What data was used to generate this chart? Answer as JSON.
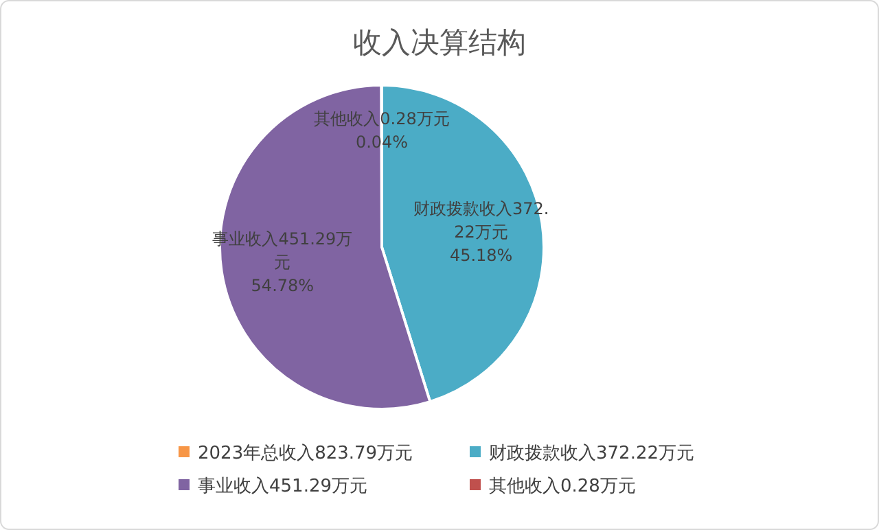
{
  "chart_data": {
    "type": "pie",
    "title": "收入决算结构",
    "categories": [
      "2023年总收入823.79万元",
      "财政拨款收入372.22万元",
      "事业收入451.29万元",
      "其他收入0.28万元"
    ],
    "values": [
      null,
      372.22,
      451.29,
      0.28
    ],
    "colors": [
      "#f79646",
      "#4bacc6",
      "#8064a2",
      "#c0504d"
    ],
    "value_labels": [
      null,
      "财政拨款收入372.22万元45.18%",
      "事业收入451.29万元54.78%",
      "其他收入0.28万元0.04%"
    ],
    "legend": "bottom"
  }
}
